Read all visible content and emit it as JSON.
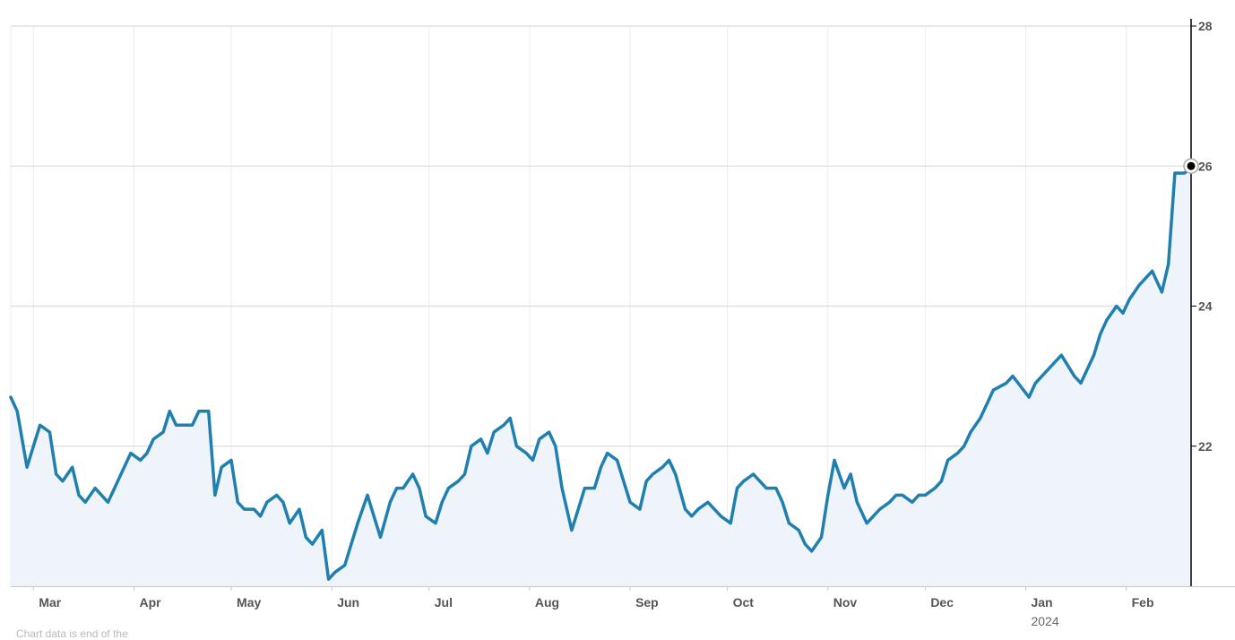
{
  "chart_data": {
    "type": "area",
    "title": "",
    "xlabel": "",
    "ylabel": "",
    "ylim": [
      20,
      28
    ],
    "y_ticks": [
      "22",
      "24",
      "26",
      "28"
    ],
    "x_ticks": [
      {
        "label": "Mar",
        "date": "2023-03-01"
      },
      {
        "label": "Apr",
        "date": "2023-04-01"
      },
      {
        "label": "May",
        "date": "2023-05-01"
      },
      {
        "label": "Jun",
        "date": "2023-06-01"
      },
      {
        "label": "Jul",
        "date": "2023-07-01"
      },
      {
        "label": "Aug",
        "date": "2023-08-01"
      },
      {
        "label": "Sep",
        "date": "2023-09-01"
      },
      {
        "label": "Oct",
        "date": "2023-10-01"
      },
      {
        "label": "Nov",
        "date": "2023-11-01"
      },
      {
        "label": "Dec",
        "date": "2023-12-01"
      },
      {
        "label": "Jan",
        "sublabel": "2024",
        "date": "2024-01-01"
      },
      {
        "label": "Feb",
        "date": "2024-02-01"
      }
    ],
    "xlim": [
      "2023-02-22",
      "2024-02-21"
    ],
    "grid": true,
    "legend": "none",
    "y_axis_position": "right",
    "colors": {
      "line": "#1f7faf",
      "fill": "#eef4fa",
      "grid": "#dcdcdc",
      "marker": "#000000"
    },
    "series": [
      {
        "x": [
          "2023-02-22",
          "2023-02-24",
          "2023-02-27",
          "2023-03-01",
          "2023-03-03",
          "2023-03-06",
          "2023-03-08",
          "2023-03-10",
          "2023-03-13",
          "2023-03-15",
          "2023-03-17",
          "2023-03-20",
          "2023-03-22",
          "2023-03-24",
          "2023-03-27",
          "2023-03-29",
          "2023-03-31",
          "2023-04-03",
          "2023-04-05",
          "2023-04-07",
          "2023-04-10",
          "2023-04-12",
          "2023-04-14",
          "2023-04-17",
          "2023-04-19",
          "2023-04-21",
          "2023-04-24",
          "2023-04-26",
          "2023-04-28",
          "2023-05-01",
          "2023-05-03",
          "2023-05-05",
          "2023-05-08",
          "2023-05-10",
          "2023-05-12",
          "2023-05-15",
          "2023-05-17",
          "2023-05-19",
          "2023-05-22",
          "2023-05-24",
          "2023-05-26",
          "2023-05-29",
          "2023-05-31",
          "2023-06-02",
          "2023-06-05",
          "2023-06-07",
          "2023-06-09",
          "2023-06-12",
          "2023-06-14",
          "2023-06-16",
          "2023-06-19",
          "2023-06-21",
          "2023-06-23",
          "2023-06-26",
          "2023-06-28",
          "2023-06-30",
          "2023-07-03",
          "2023-07-05",
          "2023-07-07",
          "2023-07-10",
          "2023-07-12",
          "2023-07-14",
          "2023-07-17",
          "2023-07-19",
          "2023-07-21",
          "2023-07-24",
          "2023-07-26",
          "2023-07-28",
          "2023-07-31",
          "2023-08-02",
          "2023-08-04",
          "2023-08-07",
          "2023-08-09",
          "2023-08-11",
          "2023-08-14",
          "2023-08-16",
          "2023-08-18",
          "2023-08-21",
          "2023-08-23",
          "2023-08-25",
          "2023-08-28",
          "2023-08-30",
          "2023-09-01",
          "2023-09-04",
          "2023-09-06",
          "2023-09-08",
          "2023-09-11",
          "2023-09-13",
          "2023-09-15",
          "2023-09-18",
          "2023-09-20",
          "2023-09-22",
          "2023-09-25",
          "2023-09-27",
          "2023-09-29",
          "2023-10-02",
          "2023-10-04",
          "2023-10-06",
          "2023-10-09",
          "2023-10-11",
          "2023-10-13",
          "2023-10-16",
          "2023-10-18",
          "2023-10-20",
          "2023-10-23",
          "2023-10-25",
          "2023-10-27",
          "2023-10-30",
          "2023-11-01",
          "2023-11-03",
          "2023-11-06",
          "2023-11-08",
          "2023-11-10",
          "2023-11-13",
          "2023-11-15",
          "2023-11-17",
          "2023-11-20",
          "2023-11-22",
          "2023-11-24",
          "2023-11-27",
          "2023-11-29",
          "2023-12-01",
          "2023-12-04",
          "2023-12-06",
          "2023-12-08",
          "2023-12-11",
          "2023-12-13",
          "2023-12-15",
          "2023-12-18",
          "2023-12-20",
          "2023-12-22",
          "2023-12-26",
          "2023-12-28",
          "2024-01-02",
          "2024-01-04",
          "2024-01-08",
          "2024-01-10",
          "2024-01-12",
          "2024-01-16",
          "2024-01-18",
          "2024-01-22",
          "2024-01-24",
          "2024-01-26",
          "2024-01-29",
          "2024-01-31",
          "2024-02-02",
          "2024-02-05",
          "2024-02-07",
          "2024-02-09",
          "2024-02-12",
          "2024-02-14",
          "2024-02-16",
          "2024-02-19",
          "2024-02-21"
        ],
        "values": [
          22.7,
          22.5,
          21.7,
          22.0,
          22.3,
          22.2,
          21.6,
          21.5,
          21.7,
          21.3,
          21.2,
          21.4,
          21.3,
          21.2,
          21.5,
          21.7,
          21.9,
          21.8,
          21.9,
          22.1,
          22.2,
          22.5,
          22.3,
          22.3,
          22.3,
          22.5,
          22.5,
          21.3,
          21.7,
          21.8,
          21.2,
          21.1,
          21.1,
          21.0,
          21.2,
          21.3,
          21.2,
          20.9,
          21.1,
          20.7,
          20.6,
          20.8,
          20.1,
          20.2,
          20.3,
          20.6,
          20.9,
          21.3,
          21.0,
          20.7,
          21.2,
          21.4,
          21.4,
          21.6,
          21.4,
          21.0,
          20.9,
          21.2,
          21.4,
          21.5,
          21.6,
          22.0,
          22.1,
          21.9,
          22.2,
          22.3,
          22.4,
          22.0,
          21.9,
          21.8,
          22.1,
          22.2,
          22.0,
          21.4,
          20.8,
          21.1,
          21.4,
          21.4,
          21.7,
          21.9,
          21.8,
          21.5,
          21.2,
          21.1,
          21.5,
          21.6,
          21.7,
          21.8,
          21.6,
          21.1,
          21.0,
          21.1,
          21.2,
          21.1,
          21.0,
          20.9,
          21.4,
          21.5,
          21.6,
          21.5,
          21.4,
          21.4,
          21.2,
          20.9,
          20.8,
          20.6,
          20.5,
          20.7,
          21.3,
          21.8,
          21.4,
          21.6,
          21.2,
          20.9,
          21.0,
          21.1,
          21.2,
          21.3,
          21.3,
          21.2,
          21.3,
          21.3,
          21.4,
          21.5,
          21.8,
          21.9,
          22.0,
          22.2,
          22.4,
          22.6,
          22.8,
          22.9,
          23.0,
          22.7,
          22.9,
          23.1,
          23.2,
          23.3,
          23.0,
          22.9,
          23.3,
          23.6,
          23.8,
          24.0,
          23.9,
          24.1,
          24.3,
          24.4,
          24.5,
          24.2,
          24.6,
          25.9,
          25.9,
          26.0
        ]
      }
    ]
  },
  "footer": {
    "note": "Chart data is end of the"
  }
}
